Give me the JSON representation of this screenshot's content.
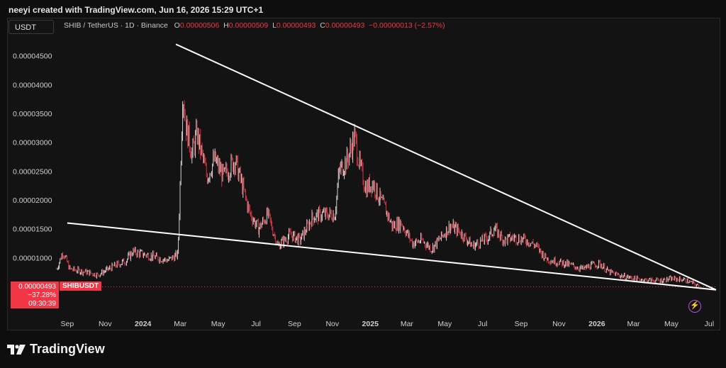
{
  "header": {
    "credit": "neeyi created with TradingView.com, Jun 16, 2026 15:29 UTC+1"
  },
  "toolbar": {
    "currency": "USDT"
  },
  "legend": {
    "symbol": "SHIB / TetherUS · 1D · Binance",
    "o_label": "O",
    "o_value": "0.00000506",
    "h_label": "H",
    "h_value": "0.00000509",
    "l_label": "L",
    "l_value": "0.00000493",
    "c_label": "C",
    "c_value": "0.00000493",
    "change": "−0.00000013 (−2.57%)"
  },
  "price_tag": {
    "price": "0.00000493",
    "change_pct": "−37.28%",
    "countdown": "09:30:39",
    "symbol": "SHIBUSDT"
  },
  "footer": {
    "brand": "TradingView"
  },
  "colors": {
    "up": "#e6e6e6",
    "down": "#f23645",
    "accent": "#f23645",
    "trendline": "#ffffff"
  },
  "chart_data": {
    "type": "candlestick",
    "title": "SHIB / TetherUS · 1D · Binance",
    "y_ticks": [
      {
        "value": 4.5e-05,
        "label": "0.00004500"
      },
      {
        "value": 4e-05,
        "label": "0.00004000"
      },
      {
        "value": 3.5e-05,
        "label": "0.00003500"
      },
      {
        "value": 3e-05,
        "label": "0.00003000"
      },
      {
        "value": 2.5e-05,
        "label": "0.00002500"
      },
      {
        "value": 2e-05,
        "label": "0.00002000"
      },
      {
        "value": 1.5e-05,
        "label": "0.00001500"
      },
      {
        "value": 1e-05,
        "label": "0.00001000"
      }
    ],
    "ylim": [
      4.25e-06,
      4.73e-05
    ],
    "x_ticks": [
      "Sep",
      "Nov",
      "2024",
      "Mar",
      "May",
      "Jul",
      "Sep",
      "Nov",
      "2025",
      "Mar",
      "May",
      "Jul",
      "Sep",
      "Nov",
      "2026",
      "Mar",
      "May",
      "Jul"
    ],
    "x_range": [
      "2023-08-15",
      "2026-07-12"
    ],
    "series": [
      {
        "date_points": [
          [
            "2023-08-15",
            8e-06
          ],
          [
            "2023-08-25",
            1.1e-05
          ],
          [
            "2023-09-05",
            8e-06
          ],
          [
            "2023-10-01",
            7.5e-06
          ],
          [
            "2023-10-20",
            7e-06
          ],
          [
            "2023-11-15",
            8.5e-06
          ],
          [
            "2023-12-05",
            9.5e-06
          ],
          [
            "2023-12-15",
            1.1e-05
          ],
          [
            "2024-01-05",
            1.05e-05
          ],
          [
            "2024-02-10",
            9.5e-06
          ],
          [
            "2024-02-26",
            1.05e-05
          ],
          [
            "2024-02-29",
            2e-05
          ],
          [
            "2024-03-05",
            3.9e-05
          ],
          [
            "2024-03-10",
            3.3e-05
          ],
          [
            "2024-03-20",
            2.8e-05
          ],
          [
            "2024-03-28",
            3.15e-05
          ],
          [
            "2024-04-13",
            2.4e-05
          ],
          [
            "2024-04-25",
            2.7e-05
          ],
          [
            "2024-05-10",
            2.4e-05
          ],
          [
            "2024-05-28",
            2.7e-05
          ],
          [
            "2024-06-10",
            2.2e-05
          ],
          [
            "2024-06-20",
            1.8e-05
          ],
          [
            "2024-07-05",
            1.5e-05
          ],
          [
            "2024-07-20",
            1.75e-05
          ],
          [
            "2024-08-05",
            1.2e-05
          ],
          [
            "2024-08-25",
            1.4e-05
          ],
          [
            "2024-09-10",
            1.3e-05
          ],
          [
            "2024-09-30",
            1.7e-05
          ],
          [
            "2024-10-15",
            1.75e-05
          ],
          [
            "2024-11-05",
            1.75e-05
          ],
          [
            "2024-11-12",
            2.5e-05
          ],
          [
            "2024-11-25",
            2.7e-05
          ],
          [
            "2024-12-07",
            3.1e-05
          ],
          [
            "2024-12-15",
            2.6e-05
          ],
          [
            "2024-12-25",
            2.2e-05
          ],
          [
            "2025-01-05",
            2.3e-05
          ],
          [
            "2025-01-15",
            2.05e-05
          ],
          [
            "2025-01-27",
            1.8e-05
          ],
          [
            "2025-02-05",
            1.55e-05
          ],
          [
            "2025-02-20",
            1.6e-05
          ],
          [
            "2025-03-10",
            1.25e-05
          ],
          [
            "2025-03-25",
            1.3e-05
          ],
          [
            "2025-04-10",
            1.15e-05
          ],
          [
            "2025-05-10",
            1.55e-05
          ],
          [
            "2025-05-25",
            1.45e-05
          ],
          [
            "2025-06-15",
            1.2e-05
          ],
          [
            "2025-07-10",
            1.35e-05
          ],
          [
            "2025-07-20",
            1.5e-05
          ],
          [
            "2025-08-05",
            1.3e-05
          ],
          [
            "2025-08-20",
            1.35e-05
          ],
          [
            "2025-09-10",
            1.3e-05
          ],
          [
            "2025-09-25",
            1.2e-05
          ],
          [
            "2025-10-10",
            1e-05
          ],
          [
            "2025-10-20",
            9.5e-06
          ],
          [
            "2025-11-10",
            9e-06
          ],
          [
            "2025-12-10",
            8e-06
          ],
          [
            "2025-12-20",
            8.5e-06
          ],
          [
            "2026-01-05",
            9e-06
          ],
          [
            "2026-01-20",
            7.5e-06
          ],
          [
            "2026-02-10",
            6.8e-06
          ],
          [
            "2026-03-10",
            6.2e-06
          ],
          [
            "2026-04-10",
            6e-06
          ],
          [
            "2026-05-01",
            6.3e-06
          ],
          [
            "2026-05-20",
            6.2e-06
          ],
          [
            "2026-06-05",
            5.5e-06
          ],
          [
            "2026-06-16",
            4.93e-06
          ]
        ]
      }
    ],
    "trendlines": [
      {
        "from": [
          "2024-02-23",
          4.7e-05
        ],
        "to": [
          "2026-07-12",
          4.4e-06
        ]
      },
      {
        "from": [
          "2023-09-01",
          1.6e-05
        ],
        "to": [
          "2026-07-12",
          4.4e-06
        ]
      }
    ],
    "grid": false
  }
}
